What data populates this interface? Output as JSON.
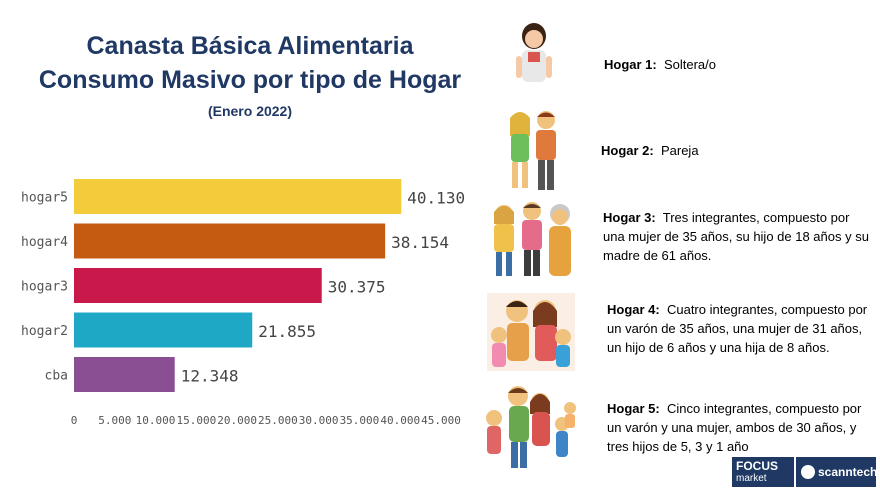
{
  "header": {
    "title_line1": "Canasta Básica Alimentaria",
    "title_line2": "Consumo Masivo por tipo de Hogar",
    "subtitle": "(Enero 2022)"
  },
  "chart_data": {
    "type": "bar",
    "orientation": "horizontal",
    "categories": [
      "hogar5",
      "hogar4",
      "hogar3",
      "hogar2",
      "cba"
    ],
    "values": [
      40130,
      38154,
      30375,
      21855,
      12348
    ],
    "value_labels": [
      "40.130",
      "38.154",
      "30.375",
      "21.855",
      "12.348"
    ],
    "colors": [
      "#f2cc3a",
      "#c55a11",
      "#c9184a",
      "#1fa8c6",
      "#8a4f92"
    ],
    "xlim": [
      0,
      45000
    ],
    "xticks": [
      0,
      5000,
      10000,
      15000,
      20000,
      25000,
      30000,
      35000,
      40000,
      45000
    ],
    "xtick_labels": [
      "0",
      "5.000",
      "10.000",
      "15.000",
      "20.000",
      "25.000",
      "30.000",
      "35.000",
      "40.000",
      "45.000"
    ],
    "grid": false,
    "legend": "none"
  },
  "households": [
    {
      "label": "Hogar 1:",
      "text": "Soltera/o",
      "icon": "woman-icon"
    },
    {
      "label": "Hogar 2:",
      "text": "Pareja",
      "icon": "couple-icon"
    },
    {
      "label": "Hogar 3:",
      "text": "Tres integrantes, compuesto por una mujer de 35 años, su hijo de 18 años y su madre de 61 años.",
      "icon": "three-people-icon"
    },
    {
      "label": "Hogar 4:",
      "text": "Cuatro integrantes, compuesto por un varón de 35 años, una mujer de 31 años, un hijo de 6 años y una hija de 8 años.",
      "icon": "family-four-icon"
    },
    {
      "label": "Hogar 5:",
      "text": "Cinco integrantes, compuesto por un varón y una mujer, ambos de 30 años, y tres hijos de 5, 3 y 1 año",
      "icon": "family-five-icon"
    }
  ],
  "logos": {
    "focus_line1": "FOCUS",
    "focus_line2": "market",
    "scanntech": "scanntech"
  }
}
